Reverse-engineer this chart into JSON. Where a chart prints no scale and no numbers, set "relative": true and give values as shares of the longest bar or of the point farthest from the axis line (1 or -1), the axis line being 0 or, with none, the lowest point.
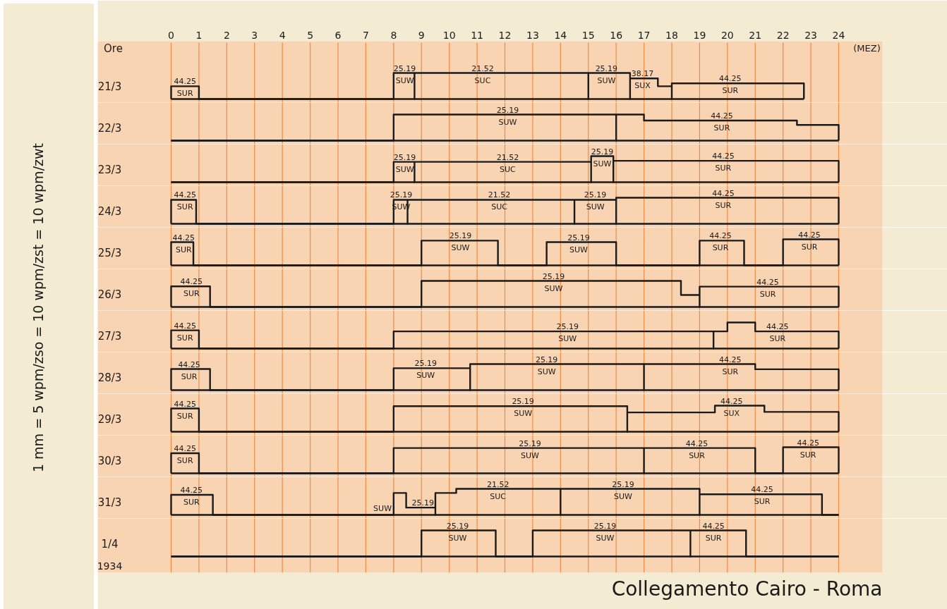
{
  "chart_data": [
    {
      "type": "step",
      "xlabel": "Ore",
      "ylabel": "21/3",
      "relative": true,
      "xlim": [
        0,
        24
      ],
      "xticks": [
        0,
        1,
        2,
        3,
        4,
        5,
        6,
        7,
        8,
        9,
        10,
        11,
        12,
        13,
        14,
        15,
        16,
        17,
        18,
        19,
        20,
        21,
        22,
        23,
        24
      ],
      "tick_labels": "x",
      "grid": "x",
      "color": "#1a1a1a",
      "x": [
        0,
        0,
        1,
        8,
        8.75,
        8.75,
        15,
        15,
        16.5,
        16.5,
        17.5,
        18,
        18,
        22.75
      ],
      "values": [
        0,
        0.49,
        0,
        1,
        0,
        1,
        0,
        1,
        0,
        0.79,
        0.49,
        0,
        0.6,
        0
      ],
      "annotations": [
        "(MEZ)",
        "1 mm = 5 wpm/zso = 10 wpm/zst = 10 wpm/zwt",
        {
          "text": "44.25",
          "x": 0.5,
          "y": 0.49
        },
        {
          "text": "SUR",
          "x": 0.5,
          "y": 0.49
        },
        {
          "text": "25.19",
          "x": 8.4,
          "y": 1
        },
        {
          "text": "SUW",
          "x": 8.4,
          "y": 1
        },
        {
          "text": "21.52",
          "x": 11.2,
          "y": 1
        },
        {
          "text": "SUC",
          "x": 11.2,
          "y": 1
        },
        {
          "text": "25.19",
          "x": 15.65,
          "y": 1
        },
        {
          "text": "SUW",
          "x": 15.65,
          "y": 1
        },
        {
          "text": "38.17",
          "x": 16.95,
          "y": 0.79
        },
        {
          "text": "SUX",
          "x": 16.95,
          "y": 0.79
        },
        {
          "text": "44.25",
          "x": 20.1,
          "y": 0.6
        },
        {
          "text": "SUR",
          "x": 20.1,
          "y": 0.6
        }
      ]
    },
    {
      "type": "step",
      "ylabel": "22/3",
      "relative": true,
      "xlim": [
        0,
        24
      ],
      "xticks": [
        0,
        1,
        2,
        3,
        4,
        5,
        6,
        7,
        8,
        9,
        10,
        11,
        12,
        13,
        14,
        15,
        16,
        17,
        18,
        19,
        20,
        21,
        22,
        23,
        24
      ],
      "tick_labels": false,
      "grid": "x",
      "color": "#1a1a1a",
      "x": [
        0,
        8,
        16,
        16,
        17,
        22.5,
        24
      ],
      "values": [
        0,
        1,
        0,
        1,
        0.77,
        0.6,
        0
      ],
      "annotations": [
        {
          "text": "25.19",
          "x": 12.1,
          "y": 1
        },
        {
          "text": "SUW",
          "x": 12.1,
          "y": 1
        },
        {
          "text": "44.25",
          "x": 19.8,
          "y": 0.77
        },
        {
          "text": "SUR",
          "x": 19.8,
          "y": 0.77
        }
      ]
    },
    {
      "type": "step",
      "ylabel": "23/3",
      "relative": true,
      "xlim": [
        0,
        24
      ],
      "xticks": [
        0,
        1,
        2,
        3,
        4,
        5,
        6,
        7,
        8,
        9,
        10,
        11,
        12,
        13,
        14,
        15,
        16,
        17,
        18,
        19,
        20,
        21,
        22,
        23,
        24
      ],
      "tick_labels": false,
      "grid": "x",
      "color": "#1a1a1a",
      "x": [
        0,
        8,
        8.75,
        8.75,
        15.1,
        15.1,
        15.9,
        15.9,
        24
      ],
      "values": [
        0,
        0.78,
        0,
        0.78,
        0,
        1,
        0,
        0.82,
        0
      ],
      "annotations": [
        {
          "text": "25.19",
          "x": 8.4,
          "y": 0.78
        },
        {
          "text": "SUW",
          "x": 8.4,
          "y": 0.78
        },
        {
          "text": "21.52",
          "x": 12.1,
          "y": 0.78
        },
        {
          "text": "SUC",
          "x": 12.1,
          "y": 0.78
        },
        {
          "text": "25.19",
          "x": 15.5,
          "y": 1
        },
        {
          "text": "SUW",
          "x": 15.5,
          "y": 1
        },
        {
          "text": "44.25",
          "x": 19.85,
          "y": 0.82
        },
        {
          "text": "SUR",
          "x": 19.85,
          "y": 0.82
        }
      ]
    },
    {
      "type": "step",
      "ylabel": "24/3",
      "relative": true,
      "xlim": [
        0,
        24
      ],
      "xticks": [
        0,
        1,
        2,
        3,
        4,
        5,
        6,
        7,
        8,
        9,
        10,
        11,
        12,
        13,
        14,
        15,
        16,
        17,
        18,
        19,
        20,
        21,
        22,
        23,
        24
      ],
      "tick_labels": false,
      "grid": "x",
      "color": "#1a1a1a",
      "x": [
        0,
        0,
        0.9,
        8,
        8.5,
        8.5,
        14.5,
        14.5,
        16,
        16,
        24
      ],
      "values": [
        0,
        0.92,
        0,
        0.92,
        0,
        0.92,
        0,
        0.92,
        0,
        1,
        0
      ],
      "annotations": [
        {
          "text": "44.25",
          "x": 0.5,
          "y": 0.92
        },
        {
          "text": "SUR",
          "x": 0.5,
          "y": 0.92
        },
        {
          "text": "25.19",
          "x": 8.27,
          "y": 0.92
        },
        {
          "text": "SUW",
          "x": 8.27,
          "y": 0.92
        },
        {
          "text": "21.52",
          "x": 11.8,
          "y": 0.92
        },
        {
          "text": "SUC",
          "x": 11.8,
          "y": 0.92
        },
        {
          "text": "25.19",
          "x": 15.25,
          "y": 0.92
        },
        {
          "text": "SUW",
          "x": 15.25,
          "y": 0.92
        },
        {
          "text": "44.25",
          "x": 19.85,
          "y": 1
        },
        {
          "text": "SUR",
          "x": 19.85,
          "y": 1
        }
      ]
    },
    {
      "type": "step",
      "ylabel": "25/3",
      "relative": true,
      "xlim": [
        0,
        24
      ],
      "xticks": [
        0,
        1,
        2,
        3,
        4,
        5,
        6,
        7,
        8,
        9,
        10,
        11,
        12,
        13,
        14,
        15,
        16,
        17,
        18,
        19,
        20,
        21,
        22,
        23,
        24
      ],
      "tick_labels": false,
      "grid": "x",
      "color": "#1a1a1a",
      "x": [
        0,
        0,
        0.8,
        9,
        11.75,
        13.5,
        16,
        19,
        20.6,
        22,
        24
      ],
      "values": [
        0,
        0.89,
        0,
        0.95,
        0,
        0.89,
        0,
        0.95,
        0,
        1,
        0
      ],
      "annotations": [
        {
          "text": "44.25",
          "x": 0.45,
          "y": 0.89
        },
        {
          "text": "SUR",
          "x": 0.45,
          "y": 0.89
        },
        {
          "text": "25.19",
          "x": 10.4,
          "y": 0.95
        },
        {
          "text": "SUW",
          "x": 10.4,
          "y": 0.95
        },
        {
          "text": "25.19",
          "x": 14.65,
          "y": 0.89
        },
        {
          "text": "SUW",
          "x": 14.65,
          "y": 0.89
        },
        {
          "text": "44.25",
          "x": 19.75,
          "y": 0.95
        },
        {
          "text": "SUR",
          "x": 19.75,
          "y": 0.95
        },
        {
          "text": "44.25",
          "x": 22.95,
          "y": 1
        },
        {
          "text": "SUR",
          "x": 22.95,
          "y": 1
        }
      ]
    },
    {
      "type": "step",
      "ylabel": "26/3",
      "relative": true,
      "xlim": [
        0,
        24
      ],
      "xticks": [
        0,
        1,
        2,
        3,
        4,
        5,
        6,
        7,
        8,
        9,
        10,
        11,
        12,
        13,
        14,
        15,
        16,
        17,
        18,
        19,
        20,
        21,
        22,
        23,
        24
      ],
      "tick_labels": false,
      "grid": "x",
      "color": "#1a1a1a",
      "x": [
        0,
        0,
        1.4,
        9,
        18.33,
        19,
        19,
        24
      ],
      "values": [
        0,
        0.79,
        0,
        1,
        0.46,
        0,
        0.78,
        0
      ],
      "annotations": [
        {
          "text": "44.25",
          "x": 0.73,
          "y": 0.79
        },
        {
          "text": "SUR",
          "x": 0.73,
          "y": 0.79
        },
        {
          "text": "25.19",
          "x": 13.75,
          "y": 1
        },
        {
          "text": "SUW",
          "x": 13.75,
          "y": 1
        },
        {
          "text": "44.25",
          "x": 21.45,
          "y": 0.78
        },
        {
          "text": "SUR",
          "x": 21.45,
          "y": 0.78
        }
      ]
    },
    {
      "type": "step",
      "ylabel": "27/3",
      "relative": true,
      "xlim": [
        0,
        24
      ],
      "xticks": [
        0,
        1,
        2,
        3,
        4,
        5,
        6,
        7,
        8,
        9,
        10,
        11,
        12,
        13,
        14,
        15,
        16,
        17,
        18,
        19,
        20,
        21,
        22,
        23,
        24
      ],
      "tick_labels": false,
      "grid": "x",
      "color": "#1a1a1a",
      "x": [
        0,
        0,
        1,
        8,
        19.5,
        19.5,
        20,
        21,
        24
      ],
      "values": [
        0,
        0.7,
        0,
        0.66,
        0,
        0.66,
        1,
        0.66,
        0
      ],
      "annotations": [
        {
          "text": "44.25",
          "x": 0.5,
          "y": 0.7
        },
        {
          "text": "SUR",
          "x": 0.5,
          "y": 0.7
        },
        {
          "text": "25.19",
          "x": 14.25,
          "y": 0.66
        },
        {
          "text": "SUW",
          "x": 14.25,
          "y": 0.66
        },
        {
          "text": "44.25",
          "x": 21.8,
          "y": 0.66
        },
        {
          "text": "SUR",
          "x": 21.8,
          "y": 0.66
        }
      ]
    },
    {
      "type": "step",
      "ylabel": "28/3",
      "relative": true,
      "xlim": [
        0,
        24
      ],
      "xticks": [
        0,
        1,
        2,
        3,
        4,
        5,
        6,
        7,
        8,
        9,
        10,
        11,
        12,
        13,
        14,
        15,
        16,
        17,
        18,
        19,
        20,
        21,
        22,
        23,
        24
      ],
      "tick_labels": false,
      "grid": "x",
      "color": "#1a1a1a",
      "x": [
        0,
        0,
        1.4,
        8,
        10.75,
        10.75,
        17,
        17,
        21,
        24
      ],
      "values": [
        0,
        0.81,
        0,
        0.84,
        0,
        1,
        0,
        1,
        0.8,
        0
      ],
      "annotations": [
        {
          "text": "44.25",
          "x": 0.65,
          "y": 0.81
        },
        {
          "text": "SUR",
          "x": 0.65,
          "y": 0.81
        },
        {
          "text": "25.19",
          "x": 9.15,
          "y": 0.84
        },
        {
          "text": "SUW",
          "x": 9.15,
          "y": 0.84
        },
        {
          "text": "25.19",
          "x": 13.5,
          "y": 1
        },
        {
          "text": "SUW",
          "x": 13.5,
          "y": 1
        },
        {
          "text": "44.25",
          "x": 20.1,
          "y": 1
        },
        {
          "text": "SUR",
          "x": 20.1,
          "y": 1
        }
      ]
    },
    {
      "type": "step",
      "ylabel": "29/3",
      "relative": true,
      "xlim": [
        0,
        24
      ],
      "xticks": [
        0,
        1,
        2,
        3,
        4,
        5,
        6,
        7,
        8,
        9,
        10,
        11,
        12,
        13,
        14,
        15,
        16,
        17,
        18,
        19,
        20,
        21,
        22,
        23,
        24
      ],
      "tick_labels": false,
      "grid": "x",
      "color": "#1a1a1a",
      "x": [
        0,
        0,
        1,
        8,
        16.4,
        16.4,
        19.55,
        21.33,
        24
      ],
      "values": [
        0,
        0.89,
        0,
        0.98,
        0,
        0.74,
        1,
        0.76,
        0
      ],
      "annotations": [
        {
          "text": "44.25",
          "x": 0.5,
          "y": 0.89
        },
        {
          "text": "SUR",
          "x": 0.5,
          "y": 0.89
        },
        {
          "text": "25.19",
          "x": 12.65,
          "y": 0.98
        },
        {
          "text": "SUW",
          "x": 12.65,
          "y": 0.98
        },
        {
          "text": "44.25",
          "x": 20.15,
          "y": 1
        },
        {
          "text": "SUX",
          "x": 20.15,
          "y": 1
        }
      ]
    },
    {
      "type": "step",
      "ylabel": "30/3",
      "relative": true,
      "xlim": [
        0,
        24
      ],
      "xticks": [
        0,
        1,
        2,
        3,
        4,
        5,
        6,
        7,
        8,
        9,
        10,
        11,
        12,
        13,
        14,
        15,
        16,
        17,
        18,
        19,
        20,
        21,
        22,
        23,
        24
      ],
      "tick_labels": false,
      "grid": "x",
      "color": "#1a1a1a",
      "x": [
        0,
        0,
        1,
        8,
        17,
        17,
        21,
        22,
        24
      ],
      "values": [
        0,
        0.77,
        0,
        0.97,
        0,
        0.97,
        0,
        1,
        0
      ],
      "annotations": [
        {
          "text": "44.25",
          "x": 0.5,
          "y": 0.77
        },
        {
          "text": "SUR",
          "x": 0.5,
          "y": 0.77
        },
        {
          "text": "25.19",
          "x": 12.9,
          "y": 0.97
        },
        {
          "text": "SUW",
          "x": 12.9,
          "y": 0.97
        },
        {
          "text": "44.25",
          "x": 18.9,
          "y": 0.97
        },
        {
          "text": "SUR",
          "x": 18.9,
          "y": 0.97
        },
        {
          "text": "44.25",
          "x": 22.9,
          "y": 1
        },
        {
          "text": "SUR",
          "x": 22.9,
          "y": 1
        }
      ]
    },
    {
      "type": "step",
      "ylabel": "31/3",
      "relative": true,
      "xlim": [
        0,
        24
      ],
      "xticks": [
        0,
        1,
        2,
        3,
        4,
        5,
        6,
        7,
        8,
        9,
        10,
        11,
        12,
        13,
        14,
        15,
        16,
        17,
        18,
        19,
        20,
        21,
        22,
        23,
        24
      ],
      "tick_labels": false,
      "grid": "x",
      "color": "#1a1a1a",
      "x": [
        0,
        0,
        1.5,
        8,
        8.45,
        9.5,
        9.5,
        10.25,
        14,
        14,
        19,
        19,
        23.4,
        24
      ],
      "values": [
        0,
        0.77,
        0,
        0.84,
        0.28,
        0,
        0.84,
        1,
        0,
        1,
        0,
        0.79,
        0,
        0
      ],
      "annotations": [
        {
          "text": "44.25",
          "x": 0.73,
          "y": 0.77
        },
        {
          "text": "SUR",
          "x": 0.73,
          "y": 0.77
        },
        {
          "text": "SUW",
          "x": 7.6,
          "y": 0
        },
        {
          "text": "25.19",
          "x": 9.05,
          "y": 0.28
        },
        {
          "text": "21.52",
          "x": 11.75,
          "y": 1
        },
        {
          "text": "SUC",
          "x": 11.75,
          "y": 1
        },
        {
          "text": "25.19",
          "x": 16.25,
          "y": 1
        },
        {
          "text": "SUW",
          "x": 16.25,
          "y": 1
        },
        {
          "text": "44.25",
          "x": 21.25,
          "y": 0.79
        },
        {
          "text": "SUR",
          "x": 21.25,
          "y": 0.79
        }
      ]
    },
    {
      "type": "step",
      "title": "Collegamento Cairo - Roma",
      "ylabel": "1/4",
      "relative": true,
      "xlim": [
        0,
        24
      ],
      "xticks": [
        0,
        1,
        2,
        3,
        4,
        5,
        6,
        7,
        8,
        9,
        10,
        11,
        12,
        13,
        14,
        15,
        16,
        17,
        18,
        19,
        20,
        21,
        22,
        23,
        24
      ],
      "tick_labels": false,
      "grid": "x",
      "color": "#1a1a1a",
      "x": [
        0,
        9,
        11.67,
        13,
        18.67,
        18.67,
        20.67,
        24
      ],
      "values": [
        0,
        1,
        0,
        1,
        0,
        1,
        0,
        0
      ],
      "annotations": [
        "1934",
        {
          "text": "25.19",
          "x": 10.3,
          "y": 1
        },
        {
          "text": "SUW",
          "x": 10.3,
          "y": 1
        },
        {
          "text": "25.19",
          "x": 15.6,
          "y": 1
        },
        {
          "text": "SUW",
          "x": 15.6,
          "y": 1
        },
        {
          "text": "44.25",
          "x": 19.5,
          "y": 1
        },
        {
          "text": "SUR",
          "x": 19.5,
          "y": 1
        }
      ]
    }
  ]
}
